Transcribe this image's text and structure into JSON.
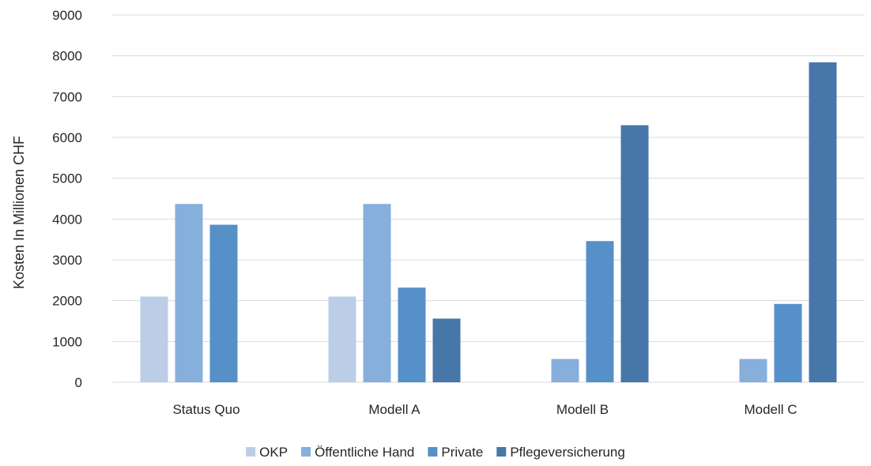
{
  "chart_data": {
    "type": "bar",
    "title": "",
    "xlabel": "",
    "ylabel": "Kosten In Millionen CHF",
    "ylim": [
      0,
      9000
    ],
    "yticks": [
      0,
      1000,
      2000,
      3000,
      4000,
      5000,
      6000,
      7000,
      8000,
      9000
    ],
    "categories": [
      "Status Quo",
      "Modell A",
      "Modell B",
      "Modell C"
    ],
    "series": [
      {
        "name": "OKP",
        "color": "#bccde8",
        "values": [
          2100,
          2100,
          0,
          0
        ]
      },
      {
        "name": "Öffentliche Hand",
        "color": "#87afdc",
        "values": [
          4370,
          4370,
          570,
          570
        ]
      },
      {
        "name": "Private",
        "color": "#5690c8",
        "values": [
          3860,
          2320,
          3460,
          1920
        ]
      },
      {
        "name": "Pflegeversicherung",
        "color": "#4677a8",
        "values": [
          0,
          1560,
          6300,
          7840
        ]
      }
    ],
    "grid": true,
    "legend": "bottom"
  }
}
